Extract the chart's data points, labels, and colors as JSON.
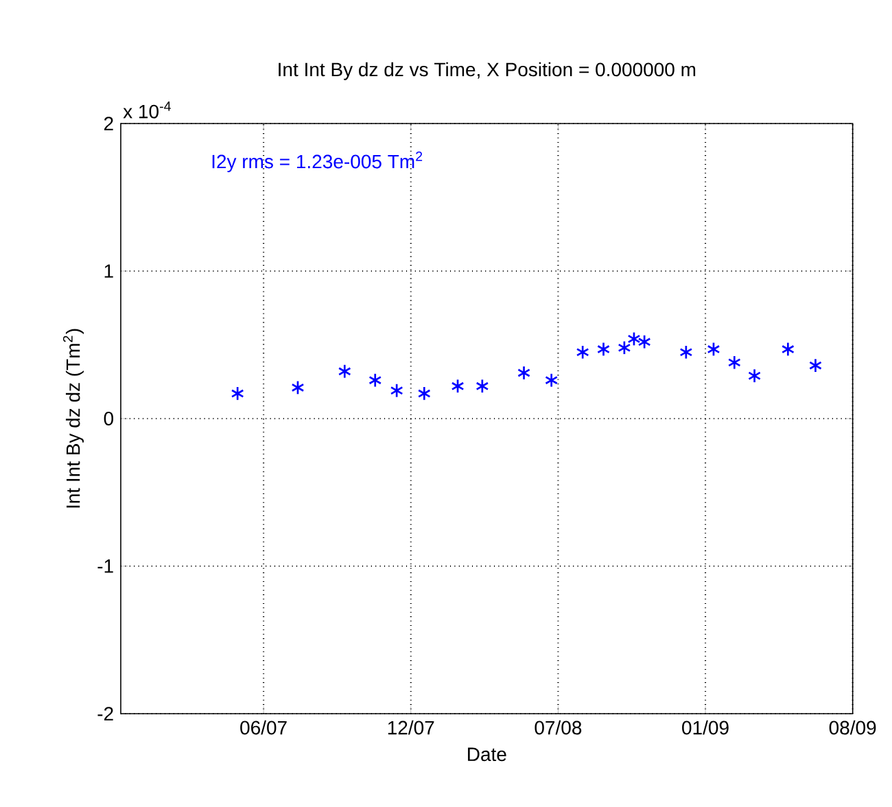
{
  "chart_data": {
    "type": "scatter",
    "title": "Int Int By dz dz vs Time, X Position = 0.000000 m",
    "xlabel": "Date",
    "ylabel": "Int Int By dz dz (Tm$^{2}$)",
    "annotations": [
      "x 10$^{-4}$",
      "I2y rms =  1.23e-005 Tm$^{2}$"
    ],
    "x": [
      "2007-05-06",
      "2007-07-26",
      "2007-09-27",
      "2007-11-07",
      "2007-12-06",
      "2008-01-12",
      "2008-02-26",
      "2008-03-30",
      "2008-05-25",
      "2008-07-01",
      "2008-08-12",
      "2008-09-09",
      "2008-10-07",
      "2008-10-20",
      "2008-11-03",
      "2008-12-29",
      "2009-02-04",
      "2009-03-04",
      "2009-03-31",
      "2009-05-15",
      "2009-06-21"
    ],
    "series": [
      {
        "color": "#0000ff",
        "values": [
          0.17,
          0.21,
          0.32,
          0.26,
          0.19,
          0.17,
          0.22,
          0.22,
          0.31,
          0.26,
          0.45,
          0.47,
          0.48,
          0.54,
          0.52,
          0.45,
          0.47,
          0.38,
          0.29,
          0.47,
          0.36
        ]
      }
    ],
    "xlim": [
      "2006-11-30",
      "2009-08-10"
    ],
    "xticks": [
      {
        "value": "2007-06-10",
        "label": "06/07"
      },
      {
        "value": "2007-12-25",
        "label": "12/07"
      },
      {
        "value": "2008-07-10",
        "label": "07/08"
      },
      {
        "value": "2009-01-24",
        "label": "01/09"
      },
      {
        "value": "2009-08-10",
        "label": "08/09"
      }
    ],
    "ylim": [
      -2,
      2
    ],
    "yticks": [
      -2,
      -1,
      0,
      1,
      2
    ],
    "grid": true,
    "marker": "cross"
  }
}
